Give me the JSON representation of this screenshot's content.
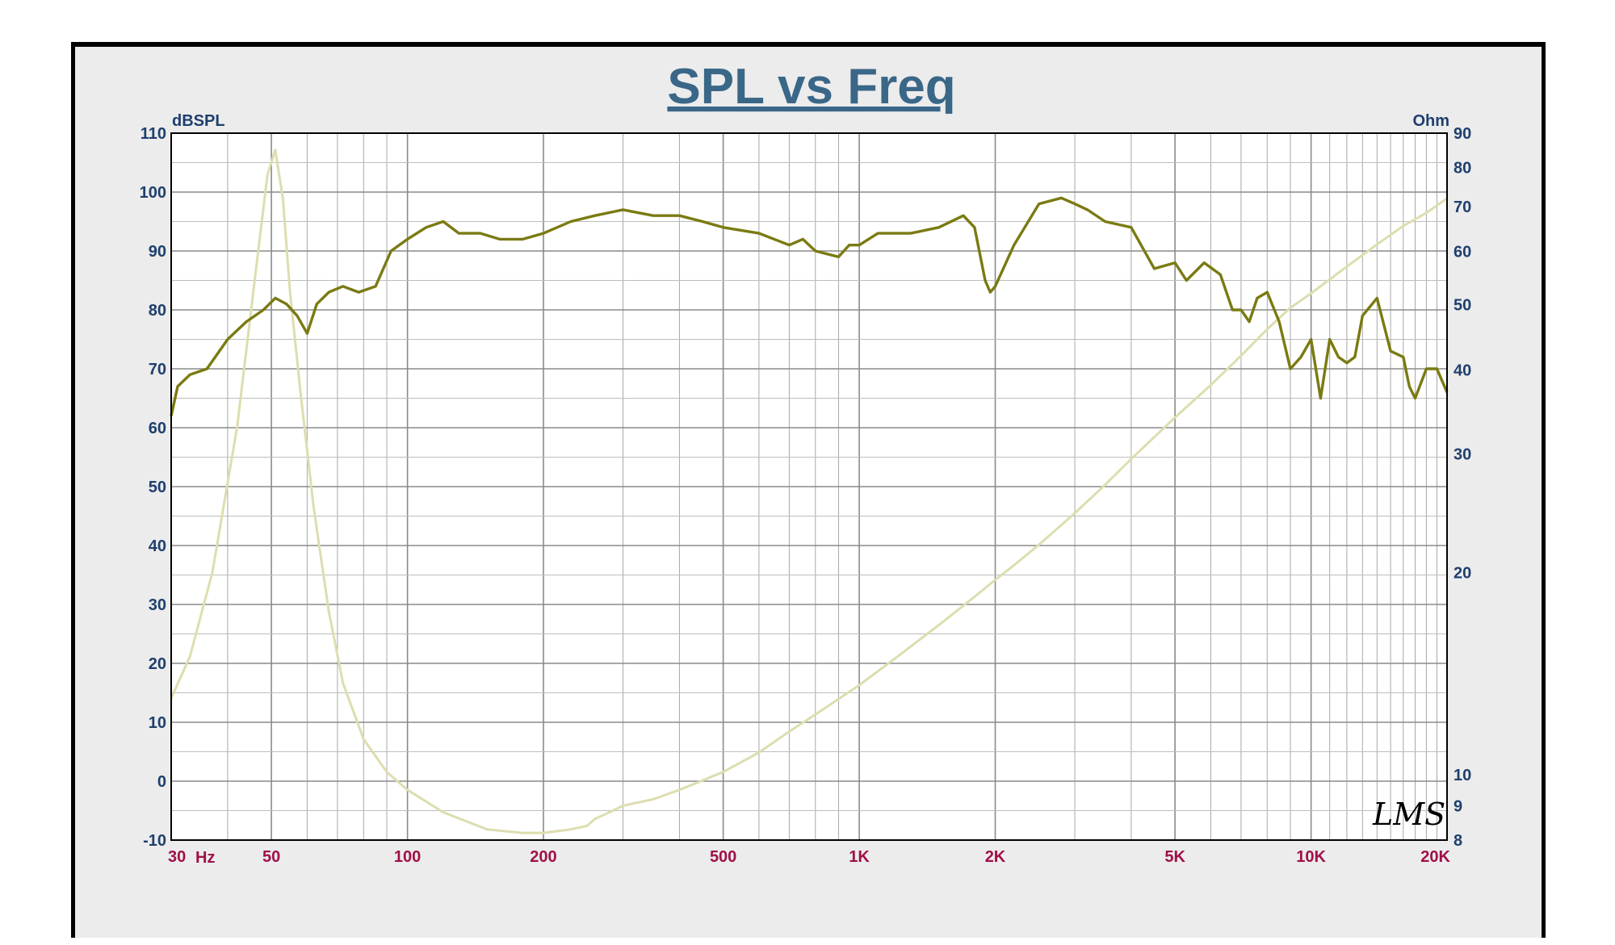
{
  "chart_data": {
    "type": "line",
    "title": "SPL vs Freq",
    "x_unit_label": "Hz",
    "y_left_label": "dBSPL",
    "y_right_label": "Ohm",
    "x_scale": "log",
    "xlim": [
      30,
      20000
    ],
    "ylim": [
      -10,
      110
    ],
    "y_right_lim": [
      8,
      90
    ],
    "y_right_scale": "log",
    "grid": true,
    "x_ticks": [
      {
        "value": 30,
        "label": "30"
      },
      {
        "value": 50,
        "label": "50"
      },
      {
        "value": 100,
        "label": "100"
      },
      {
        "value": 200,
        "label": "200"
      },
      {
        "value": 500,
        "label": "500"
      },
      {
        "value": 1000,
        "label": "1K"
      },
      {
        "value": 2000,
        "label": "2K"
      },
      {
        "value": 5000,
        "label": "5K"
      },
      {
        "value": 10000,
        "label": "10K"
      },
      {
        "value": 20000,
        "label": "20K"
      }
    ],
    "y_left_ticks": [
      110,
      100,
      90,
      80,
      70,
      60,
      50,
      40,
      30,
      20,
      10,
      0,
      -10
    ],
    "y_right_ticks": [
      90,
      80,
      70,
      60,
      50,
      40,
      30,
      20,
      10,
      9,
      8
    ],
    "series": [
      {
        "axis": "left",
        "color": "#7a7a12",
        "x": [
          30,
          31,
          33,
          36,
          40,
          44,
          48,
          51,
          54,
          57,
          60,
          63,
          67,
          72,
          78,
          85,
          92,
          100,
          110,
          120,
          130,
          145,
          160,
          180,
          200,
          230,
          260,
          300,
          350,
          400,
          450,
          500,
          600,
          700,
          750,
          800,
          900,
          950,
          1000,
          1100,
          1200,
          1300,
          1500,
          1700,
          1800,
          1900,
          1950,
          2000,
          2200,
          2500,
          2800,
          3000,
          3200,
          3500,
          4000,
          4500,
          5000,
          5300,
          5800,
          6300,
          6700,
          7000,
          7300,
          7600,
          8000,
          8500,
          9000,
          9500,
          10000,
          10500,
          11000,
          11500,
          12000,
          12500,
          13000,
          14000,
          15000,
          16000,
          16500,
          17000,
          18000,
          19000,
          20000
        ],
        "y": [
          62,
          67,
          69,
          70,
          75,
          78,
          80,
          82,
          81,
          79,
          76,
          81,
          83,
          84,
          83,
          84,
          90,
          92,
          94,
          95,
          93,
          93,
          92,
          92,
          93,
          95,
          96,
          97,
          96,
          96,
          95,
          94,
          93,
          91,
          92,
          90,
          89,
          91,
          91,
          93,
          93,
          93,
          94,
          96,
          94,
          85,
          83,
          84,
          91,
          98,
          99,
          98,
          97,
          95,
          94,
          87,
          88,
          85,
          88,
          86,
          80,
          80,
          78,
          82,
          83,
          78,
          70,
          72,
          75,
          65,
          75,
          72,
          71,
          72,
          79,
          82,
          73,
          72,
          67,
          65,
          70,
          70,
          66
        ]
      },
      {
        "axis": "right",
        "color": "#ddddb0",
        "x": [
          30,
          33,
          37,
          42,
          46,
          49,
          51,
          53,
          55,
          58,
          62,
          67,
          72,
          80,
          90,
          100,
          120,
          150,
          180,
          200,
          230,
          250,
          260,
          280,
          300,
          350,
          400,
          500,
          600,
          700,
          800,
          1000,
          1200,
          1500,
          1800,
          2000,
          2200,
          2500,
          3000,
          3500,
          4000,
          5000,
          6000,
          7000,
          8000,
          9000,
          10000,
          12000,
          14000,
          16000,
          18000,
          20000
        ],
        "y": [
          13,
          15,
          20,
          33,
          55,
          78,
          85,
          72,
          52,
          37,
          25,
          17.5,
          13.7,
          11.3,
          10.1,
          9.5,
          8.8,
          8.3,
          8.2,
          8.2,
          8.3,
          8.4,
          8.6,
          8.8,
          9.0,
          9.2,
          9.5,
          10.1,
          10.8,
          11.6,
          12.3,
          13.6,
          14.9,
          16.7,
          18.4,
          19.5,
          20.5,
          22,
          24.5,
          27,
          29.5,
          34,
          38,
          42,
          46,
          49.5,
          52,
          57,
          61.5,
          65.5,
          68.5,
          72
        ]
      }
    ]
  },
  "watermark": "LMS"
}
